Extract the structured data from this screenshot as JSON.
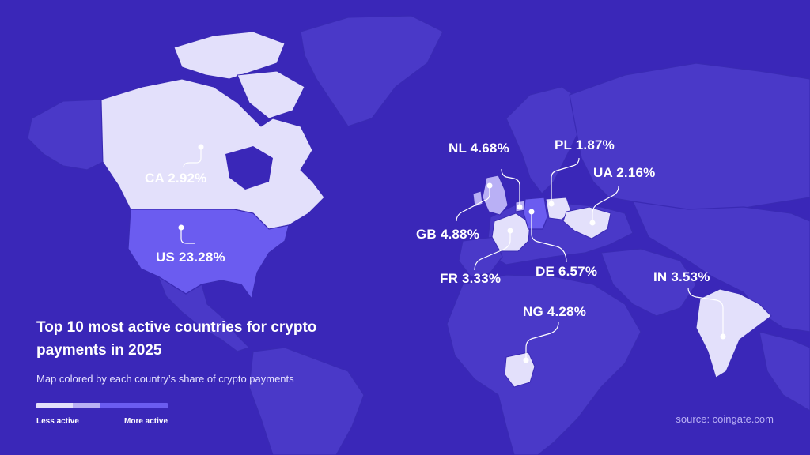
{
  "title": "Top 10 most active countries for crypto payments in 2025",
  "subtitle": "Map colored by each country’s share of crypto payments",
  "legend": {
    "low_label": "Less active",
    "high_label": "More active",
    "colors": [
      "#e3e0fb",
      "#b9b0f5",
      "#6b5cf0"
    ]
  },
  "source": "source: coingate.com",
  "colors": {
    "background": "#3a27b8",
    "land": "#4a39c8",
    "highlight_light": "#e3e0fb",
    "highlight_mid": "#b9b0f5",
    "highlight_strong": "#6b5cf0"
  },
  "countries": [
    {
      "code": "US",
      "share": 23.28,
      "label": "US 23.28%"
    },
    {
      "code": "DE",
      "share": 6.57,
      "label": "DE 6.57%"
    },
    {
      "code": "GB",
      "share": 4.88,
      "label": "GB 4.88%"
    },
    {
      "code": "NL",
      "share": 4.68,
      "label": "NL 4.68%"
    },
    {
      "code": "NG",
      "share": 4.28,
      "label": "NG 4.28%"
    },
    {
      "code": "IN",
      "share": 3.53,
      "label": "IN 3.53%"
    },
    {
      "code": "FR",
      "share": 3.33,
      "label": "FR 3.33%"
    },
    {
      "code": "CA",
      "share": 2.92,
      "label": "CA 2.92%"
    },
    {
      "code": "UA",
      "share": 2.16,
      "label": "UA 2.16%"
    },
    {
      "code": "PL",
      "share": 1.87,
      "label": "PL 1.87%"
    }
  ]
}
